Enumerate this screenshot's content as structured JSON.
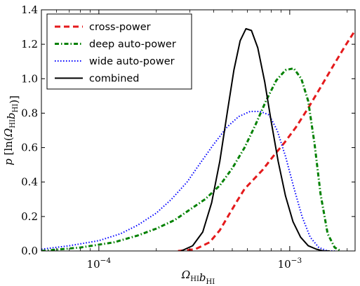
{
  "chart_data": {
    "type": "line",
    "title": "",
    "xlabel": "Ω_HI b_HI",
    "ylabel": "p [ln(Ω_HI b_HI)]",
    "xscale": "log",
    "xlim": [
      5e-05,
      0.0022
    ],
    "ylim": [
      0,
      1.4
    ],
    "grid": false,
    "legend_location": "top-left",
    "x_ticks": [
      {
        "value": 0.0001,
        "base": "10",
        "exponent": "−4"
      },
      {
        "value": 0.001,
        "base": "10",
        "exponent": "−3"
      }
    ],
    "y_ticks": [
      "0.0",
      "0.2",
      "0.4",
      "0.6",
      "0.8",
      "1.0",
      "1.2",
      "1.4"
    ],
    "series": [
      {
        "name": "cross-power",
        "color": "#e41a1c",
        "style": "dashed",
        "x": [
          0.00026,
          0.00032,
          0.00038,
          0.00043,
          0.00048,
          0.00053,
          0.00058,
          0.00064,
          0.00072,
          0.00082,
          0.00094,
          0.00108,
          0.00125,
          0.00145,
          0.00168,
          0.00195,
          0.0022
        ],
        "y": [
          0.0,
          0.01,
          0.05,
          0.12,
          0.21,
          0.29,
          0.36,
          0.41,
          0.47,
          0.55,
          0.63,
          0.72,
          0.83,
          0.95,
          1.07,
          1.19,
          1.28
        ]
      },
      {
        "name": "deep auto-power",
        "color": "#008000",
        "style": "dashdot",
        "x": [
          5e-05,
          8e-05,
          0.00012,
          0.00016,
          0.0002,
          0.00025,
          0.0003,
          0.00036,
          0.00043,
          0.0005,
          0.00058,
          0.00066,
          0.00075,
          0.00085,
          0.00095,
          0.00105,
          0.00115,
          0.00125,
          0.00135,
          0.00145,
          0.00158,
          0.00172,
          0.00185
        ],
        "y": [
          0.0,
          0.02,
          0.05,
          0.09,
          0.13,
          0.18,
          0.24,
          0.3,
          0.38,
          0.48,
          0.6,
          0.73,
          0.87,
          0.99,
          1.05,
          1.06,
          1.0,
          0.87,
          0.62,
          0.33,
          0.1,
          0.02,
          0.0
        ]
      },
      {
        "name": "wide auto-power",
        "color": "#0000ff",
        "style": "dotted",
        "x": [
          5e-05,
          7e-05,
          0.0001,
          0.00013,
          0.00016,
          0.0002,
          0.00024,
          0.00029,
          0.00034,
          0.0004,
          0.00047,
          0.00054,
          0.00062,
          0.0007,
          0.00078,
          0.00086,
          0.00095,
          0.00105,
          0.00116,
          0.00128,
          0.00142,
          0.00158,
          0.00172
        ],
        "y": [
          0.01,
          0.03,
          0.06,
          0.1,
          0.15,
          0.22,
          0.3,
          0.4,
          0.51,
          0.62,
          0.72,
          0.78,
          0.81,
          0.81,
          0.79,
          0.7,
          0.55,
          0.37,
          0.2,
          0.08,
          0.02,
          0.0,
          0.0
        ]
      },
      {
        "name": "combined",
        "color": "#000000",
        "style": "solid",
        "x": [
          0.00027,
          0.00031,
          0.00035,
          0.00039,
          0.00043,
          0.00047,
          0.00051,
          0.00055,
          0.00059,
          0.00063,
          0.00068,
          0.00074,
          0.0008,
          0.00087,
          0.00095,
          0.00104,
          0.00114,
          0.00125,
          0.00138,
          0.0015,
          0.00162
        ],
        "y": [
          0.0,
          0.03,
          0.11,
          0.28,
          0.52,
          0.8,
          1.05,
          1.22,
          1.29,
          1.28,
          1.18,
          0.98,
          0.75,
          0.52,
          0.32,
          0.17,
          0.08,
          0.03,
          0.01,
          0.0,
          0.0
        ]
      }
    ]
  }
}
